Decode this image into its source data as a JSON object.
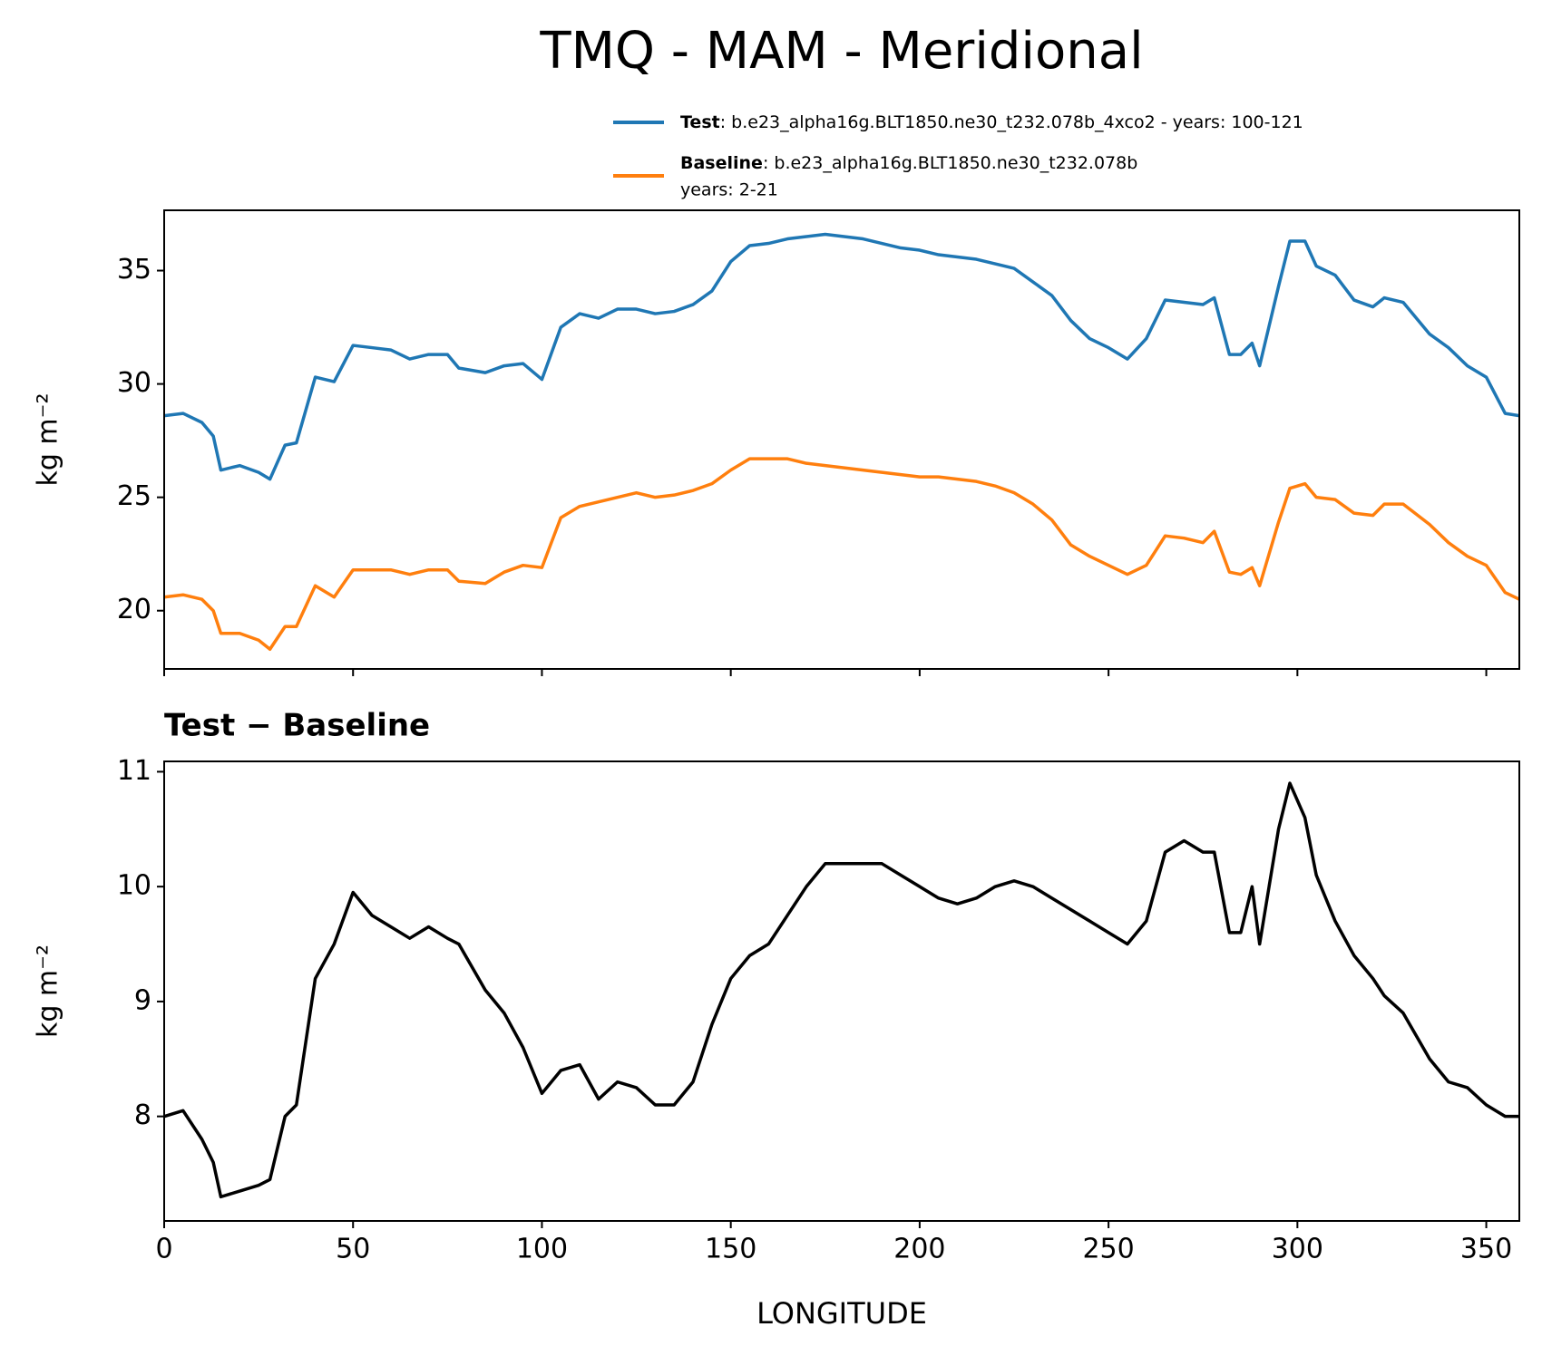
{
  "title": "TMQ - MAM - Meridional",
  "chart_data": [
    {
      "type": "line",
      "x": [
        0,
        5,
        10,
        13,
        15,
        20,
        25,
        28,
        32,
        35,
        40,
        45,
        50,
        55,
        60,
        65,
        70,
        75,
        78,
        85,
        90,
        95,
        100,
        105,
        110,
        115,
        120,
        125,
        130,
        135,
        140,
        145,
        150,
        155,
        160,
        165,
        170,
        175,
        180,
        185,
        190,
        195,
        200,
        205,
        210,
        215,
        220,
        225,
        230,
        235,
        240,
        245,
        250,
        255,
        260,
        265,
        270,
        275,
        278,
        282,
        285,
        288,
        290,
        295,
        298,
        302,
        305,
        310,
        315,
        320,
        323,
        328,
        335,
        340,
        345,
        350,
        355,
        358.75
      ],
      "series": [
        {
          "name": "Test",
          "label": ": b.e23_alpha16g.BLT1850.ne30_t232.078b_4xco2 - years: 100-121",
          "color": "#1f77b4",
          "values": [
            28.6,
            28.7,
            28.3,
            27.7,
            26.2,
            26.4,
            26.1,
            25.8,
            27.3,
            27.4,
            30.3,
            30.1,
            31.7,
            31.6,
            31.5,
            31.1,
            31.3,
            31.3,
            30.7,
            30.5,
            30.8,
            30.9,
            30.2,
            32.5,
            33.1,
            32.9,
            33.3,
            33.3,
            33.1,
            33.2,
            33.5,
            34.1,
            35.4,
            36.1,
            36.2,
            36.4,
            36.5,
            36.6,
            36.5,
            36.4,
            36.2,
            36.0,
            35.9,
            35.7,
            35.6,
            35.5,
            35.3,
            35.1,
            34.5,
            33.9,
            32.8,
            32.0,
            31.6,
            31.1,
            32.0,
            33.7,
            33.6,
            33.5,
            33.8,
            31.3,
            31.3,
            31.8,
            30.8,
            34.3,
            36.3,
            36.3,
            35.2,
            34.8,
            33.7,
            33.4,
            33.8,
            33.6,
            32.2,
            31.6,
            30.8,
            30.3,
            28.7,
            28.6
          ]
        },
        {
          "name": "Baseline",
          "label_lines": [
            ": b.e23_alpha16g.BLT1850.ne30_t232.078b",
            "years: 2-21"
          ],
          "color": "#ff7f0e",
          "values": [
            20.6,
            20.7,
            20.5,
            20.0,
            19.0,
            19.0,
            18.7,
            18.3,
            19.3,
            19.3,
            21.1,
            20.6,
            21.8,
            21.8,
            21.8,
            21.6,
            21.8,
            21.8,
            21.3,
            21.2,
            21.7,
            22.0,
            21.9,
            24.1,
            24.6,
            24.8,
            25.0,
            25.2,
            25.0,
            25.1,
            25.3,
            25.6,
            26.2,
            26.7,
            26.7,
            26.7,
            26.5,
            26.4,
            26.3,
            26.2,
            26.1,
            26.0,
            25.9,
            25.9,
            25.8,
            25.7,
            25.5,
            25.2,
            24.7,
            24.0,
            22.9,
            22.4,
            22.0,
            21.6,
            22.0,
            23.3,
            23.2,
            23.0,
            23.5,
            21.7,
            21.6,
            21.9,
            21.1,
            23.9,
            25.4,
            25.6,
            25.0,
            24.9,
            24.3,
            24.2,
            24.7,
            24.7,
            23.8,
            23.0,
            22.4,
            22.0,
            20.8,
            20.5
          ]
        }
      ],
      "ylabel": "kg m⁻²",
      "xlim": [
        0,
        358.75
      ],
      "xticks": [
        0,
        50,
        100,
        150,
        200,
        250,
        300,
        350
      ],
      "ylim": [
        17.43,
        37.66
      ],
      "yticks": [
        20,
        25,
        30,
        35
      ]
    },
    {
      "type": "line",
      "title": "Test − Baseline",
      "x": [
        0,
        5,
        10,
        13,
        15,
        20,
        25,
        28,
        32,
        35,
        40,
        45,
        50,
        55,
        60,
        65,
        70,
        75,
        78,
        85,
        90,
        95,
        100,
        105,
        110,
        115,
        120,
        125,
        130,
        135,
        140,
        145,
        150,
        155,
        160,
        165,
        170,
        175,
        180,
        185,
        190,
        195,
        200,
        205,
        210,
        215,
        220,
        225,
        230,
        235,
        240,
        245,
        250,
        255,
        260,
        265,
        270,
        275,
        278,
        282,
        285,
        288,
        290,
        295,
        298,
        302,
        305,
        310,
        315,
        320,
        323,
        328,
        335,
        340,
        345,
        350,
        355,
        358.75
      ],
      "series": [
        {
          "color": "#000000",
          "values": [
            8.0,
            8.05,
            7.8,
            7.6,
            7.3,
            7.35,
            7.4,
            7.45,
            8.0,
            8.1,
            9.2,
            9.5,
            9.95,
            9.75,
            9.65,
            9.55,
            9.65,
            9.55,
            9.5,
            9.1,
            8.9,
            8.6,
            8.2,
            8.4,
            8.45,
            8.15,
            8.3,
            8.25,
            8.1,
            8.1,
            8.3,
            8.8,
            9.2,
            9.4,
            9.5,
            9.75,
            10.0,
            10.2,
            10.2,
            10.2,
            10.2,
            10.1,
            10.0,
            9.9,
            9.85,
            9.9,
            10.0,
            10.05,
            10.0,
            9.9,
            9.8,
            9.7,
            9.6,
            9.5,
            9.7,
            10.3,
            10.4,
            10.3,
            10.3,
            9.6,
            9.6,
            10.0,
            9.5,
            10.5,
            10.9,
            10.6,
            10.1,
            9.7,
            9.4,
            9.2,
            9.05,
            8.9,
            8.5,
            8.3,
            8.25,
            8.1,
            8.0,
            8.0
          ]
        }
      ],
      "xlabel": "LONGITUDE",
      "ylabel": "kg m⁻²",
      "xlim": [
        0,
        358.75
      ],
      "xticks": [
        0,
        50,
        100,
        150,
        200,
        250,
        300,
        350
      ],
      "ylim": [
        7.09,
        11.09
      ],
      "yticks": [
        8,
        9,
        10,
        11
      ]
    }
  ]
}
